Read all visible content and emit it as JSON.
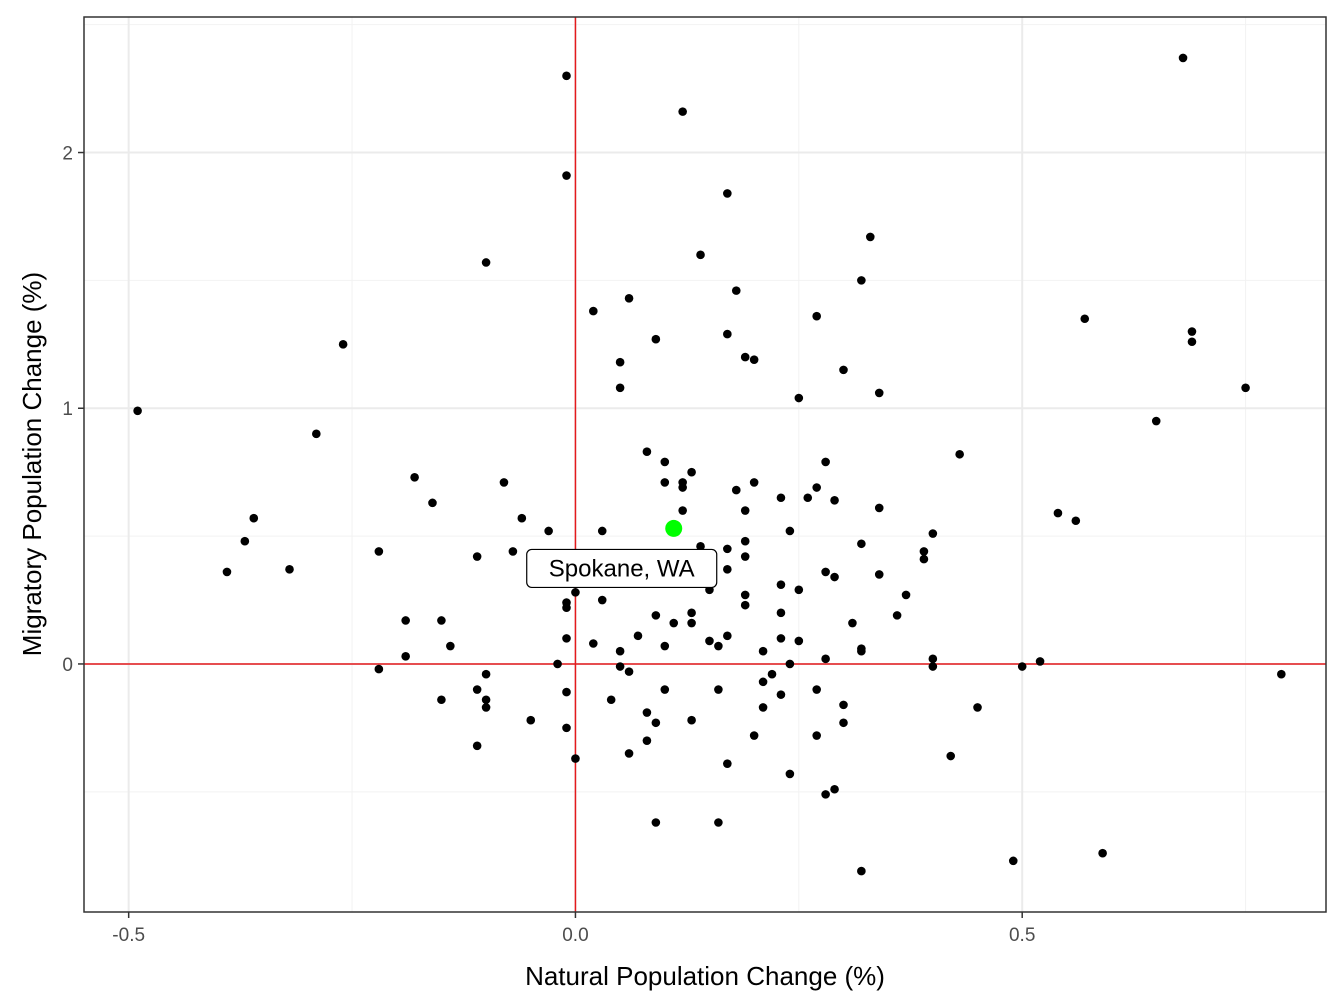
{
  "chart_data": {
    "type": "scatter",
    "title": "",
    "xlabel": "Natural Population Change (%)",
    "ylabel": "Migratory Population Change (%)",
    "xlim": [
      -0.55,
      0.84
    ],
    "ylim": [
      -0.97,
      2.53
    ],
    "x_ticks": [
      -0.5,
      0.0,
      0.5
    ],
    "x_tick_labels": [
      "-0.5",
      "0.0",
      "0.5"
    ],
    "y_ticks": [
      0,
      1,
      2
    ],
    "y_tick_labels": [
      "0",
      "1",
      "2"
    ],
    "grid": true,
    "reference_lines": {
      "x": 0,
      "y": 0,
      "color": "#e41a1c"
    },
    "highlight": {
      "label": "Spokane, WA",
      "x": 0.11,
      "y": 0.53,
      "color": "#00ff00"
    },
    "point_color": "#000000",
    "points": [
      [
        -0.49,
        0.99
      ],
      [
        -0.26,
        1.25
      ],
      [
        -0.29,
        0.9
      ],
      [
        -0.1,
        1.57
      ],
      [
        -0.01,
        2.3
      ],
      [
        -0.01,
        1.91
      ],
      [
        0.12,
        2.16
      ],
      [
        0.17,
        1.84
      ],
      [
        0.14,
        1.6
      ],
      [
        0.18,
        1.46
      ],
      [
        0.06,
        1.43
      ],
      [
        0.02,
        1.38
      ],
      [
        0.09,
        1.27
      ],
      [
        0.05,
        1.18
      ],
      [
        0.05,
        1.08
      ],
      [
        0.17,
        1.29
      ],
      [
        0.19,
        1.2
      ],
      [
        0.2,
        1.19
      ],
      [
        0.27,
        1.36
      ],
      [
        0.3,
        1.15
      ],
      [
        0.32,
        1.5
      ],
      [
        0.33,
        1.67
      ],
      [
        0.34,
        1.06
      ],
      [
        0.25,
        1.04
      ],
      [
        0.68,
        2.37
      ],
      [
        0.69,
        1.3
      ],
      [
        0.69,
        1.26
      ],
      [
        0.57,
        1.35
      ],
      [
        0.75,
        1.08
      ],
      [
        0.65,
        0.95
      ],
      [
        0.43,
        0.82
      ],
      [
        0.54,
        0.59
      ],
      [
        0.56,
        0.56
      ],
      [
        0.4,
        0.51
      ],
      [
        0.39,
        0.44
      ],
      [
        0.39,
        0.41
      ],
      [
        0.37,
        0.27
      ],
      [
        0.36,
        0.19
      ],
      [
        -0.36,
        0.57
      ],
      [
        -0.37,
        0.48
      ],
      [
        -0.39,
        0.36
      ],
      [
        -0.32,
        0.37
      ],
      [
        -0.18,
        0.73
      ],
      [
        -0.16,
        0.63
      ],
      [
        -0.22,
        0.44
      ],
      [
        -0.08,
        0.71
      ],
      [
        -0.06,
        0.57
      ],
      [
        -0.03,
        0.52
      ],
      [
        -0.11,
        0.42
      ],
      [
        -0.07,
        0.44
      ],
      [
        0.03,
        0.52
      ],
      [
        0.08,
        0.83
      ],
      [
        0.1,
        0.79
      ],
      [
        0.1,
        0.71
      ],
      [
        0.13,
        0.75
      ],
      [
        0.12,
        0.71
      ],
      [
        0.12,
        0.69
      ],
      [
        0.12,
        0.6
      ],
      [
        0.14,
        0.46
      ],
      [
        0.17,
        0.45
      ],
      [
        0.18,
        0.68
      ],
      [
        0.2,
        0.71
      ],
      [
        0.19,
        0.6
      ],
      [
        0.19,
        0.48
      ],
      [
        0.19,
        0.42
      ],
      [
        0.23,
        0.65
      ],
      [
        0.26,
        0.65
      ],
      [
        0.27,
        0.69
      ],
      [
        0.28,
        0.79
      ],
      [
        0.29,
        0.64
      ],
      [
        0.24,
        0.52
      ],
      [
        0.34,
        0.61
      ],
      [
        0.32,
        0.47
      ],
      [
        0.17,
        0.37
      ],
      [
        0.15,
        0.29
      ],
      [
        0.19,
        0.27
      ],
      [
        0.19,
        0.23
      ],
      [
        0.23,
        0.31
      ],
      [
        0.25,
        0.29
      ],
      [
        0.28,
        0.36
      ],
      [
        0.29,
        0.34
      ],
      [
        0.34,
        0.35
      ],
      [
        0.31,
        0.16
      ],
      [
        -0.19,
        0.17
      ],
      [
        -0.15,
        0.17
      ],
      [
        -0.14,
        0.07
      ],
      [
        -0.19,
        0.03
      ],
      [
        -0.22,
        -0.02
      ],
      [
        -0.01,
        0.24
      ],
      [
        -0.01,
        0.22
      ],
      [
        0.0,
        0.28
      ],
      [
        0.03,
        0.25
      ],
      [
        0.02,
        0.08
      ],
      [
        -0.01,
        0.1
      ],
      [
        0.05,
        0.05
      ],
      [
        0.07,
        0.11
      ],
      [
        0.09,
        0.19
      ],
      [
        0.11,
        0.16
      ],
      [
        0.1,
        0.07
      ],
      [
        0.13,
        0.2
      ],
      [
        0.13,
        0.16
      ],
      [
        0.15,
        0.09
      ],
      [
        0.16,
        0.07
      ],
      [
        0.17,
        0.11
      ],
      [
        0.21,
        0.05
      ],
      [
        0.23,
        0.2
      ],
      [
        0.23,
        0.1
      ],
      [
        0.25,
        0.09
      ],
      [
        0.28,
        0.02
      ],
      [
        0.32,
        0.06
      ],
      [
        0.32,
        0.05
      ],
      [
        0.24,
        0.0
      ],
      [
        0.4,
        0.02
      ],
      [
        0.4,
        -0.01
      ],
      [
        0.5,
        -0.01
      ],
      [
        0.52,
        0.01
      ],
      [
        -0.02,
        0.0
      ],
      [
        0.05,
        -0.01
      ],
      [
        0.06,
        -0.03
      ],
      [
        -0.1,
        -0.04
      ],
      [
        -0.11,
        -0.1
      ],
      [
        -0.1,
        -0.14
      ],
      [
        -0.1,
        -0.17
      ],
      [
        -0.15,
        -0.14
      ],
      [
        -0.05,
        -0.22
      ],
      [
        -0.01,
        -0.11
      ],
      [
        -0.01,
        -0.25
      ],
      [
        0.0,
        -0.37
      ],
      [
        0.04,
        -0.14
      ],
      [
        0.08,
        -0.19
      ],
      [
        0.09,
        -0.23
      ],
      [
        0.1,
        -0.1
      ],
      [
        0.08,
        -0.3
      ],
      [
        0.06,
        -0.35
      ],
      [
        0.13,
        -0.22
      ],
      [
        0.16,
        -0.1
      ],
      [
        0.17,
        -0.39
      ],
      [
        0.21,
        -0.07
      ],
      [
        0.22,
        -0.04
      ],
      [
        0.23,
        -0.12
      ],
      [
        0.21,
        -0.17
      ],
      [
        0.2,
        -0.28
      ],
      [
        0.27,
        -0.1
      ],
      [
        0.3,
        -0.16
      ],
      [
        0.3,
        -0.23
      ],
      [
        0.27,
        -0.28
      ],
      [
        0.24,
        -0.43
      ],
      [
        0.28,
        -0.51
      ],
      [
        0.29,
        -0.49
      ],
      [
        0.42,
        -0.36
      ],
      [
        0.45,
        -0.17
      ],
      [
        0.79,
        -0.04
      ],
      [
        0.09,
        -0.62
      ],
      [
        0.16,
        -0.62
      ],
      [
        0.32,
        -0.81
      ],
      [
        0.49,
        -0.77
      ],
      [
        0.59,
        -0.74
      ],
      [
        -0.11,
        -0.32
      ]
    ]
  }
}
